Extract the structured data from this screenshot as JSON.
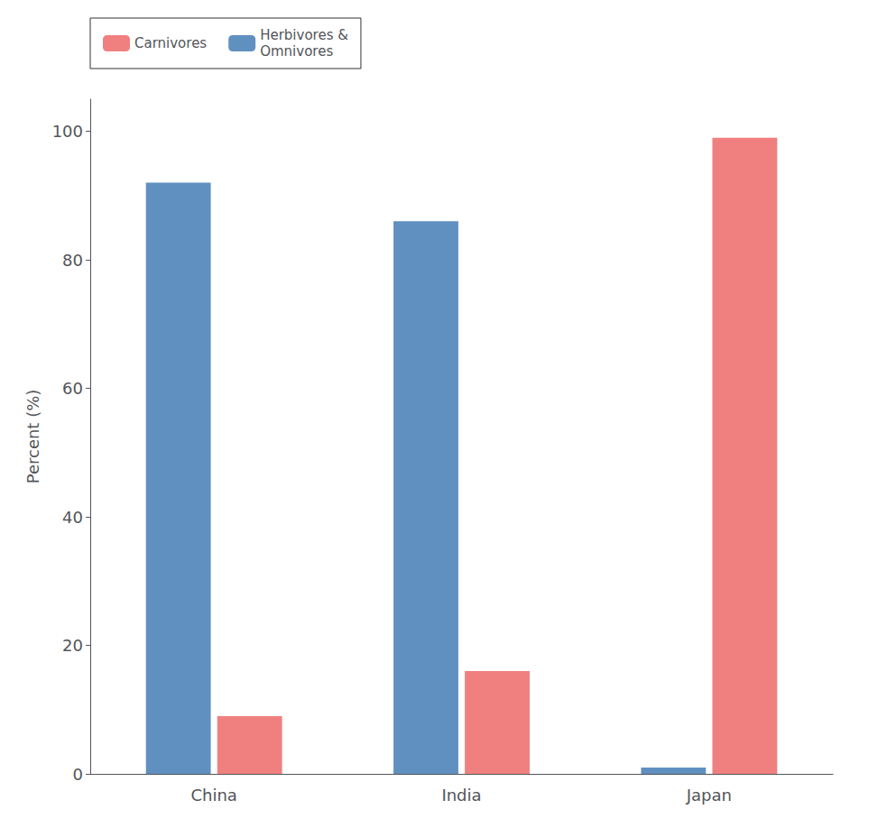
{
  "chart_data": {
    "type": "bar",
    "categories": [
      "China",
      "India",
      "Japan"
    ],
    "series": [
      {
        "name": "Herbivores &\nOmnivores",
        "color": "#6090C0",
        "values": [
          92,
          86,
          1
        ]
      },
      {
        "name": "Carnivores",
        "color": "#F08080",
        "values": [
          9,
          16,
          99
        ]
      }
    ],
    "ylabel": "Percent (%)",
    "ylim": [
      0,
      105
    ],
    "yticks": [
      0,
      20,
      40,
      60,
      80,
      100
    ],
    "grid": false,
    "legend": "upper left"
  }
}
